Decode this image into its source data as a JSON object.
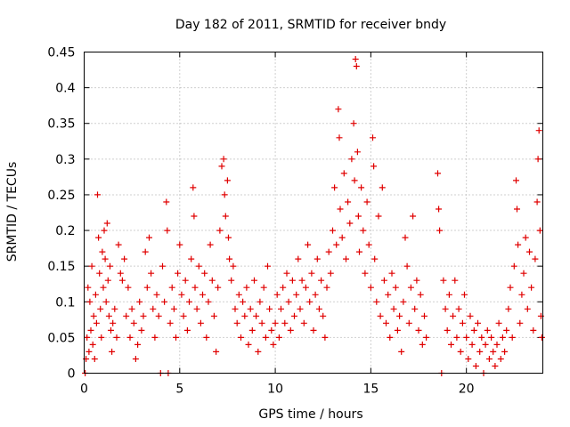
{
  "chart_data": {
    "type": "scatter",
    "title": "Day 182 of 2011, SRMTID for receiver bndy",
    "xlabel": "GPS time / hours",
    "ylabel": "SRMTID / TECUs",
    "xlim": [
      0,
      24
    ],
    "ylim": [
      0,
      0.45
    ],
    "xticks": [
      0,
      5,
      10,
      15,
      20
    ],
    "yticks": [
      0,
      0.05,
      0.1,
      0.15,
      0.2,
      0.25,
      0.3,
      0.35,
      0.4,
      0.45
    ],
    "xtick_labels": [
      "0",
      "5",
      "10",
      "15",
      "20"
    ],
    "ytick_labels": [
      "0",
      "0.05",
      "0.1",
      "0.15",
      "0.2",
      "0.25",
      "0.3",
      "0.35",
      "0.4",
      "0.45"
    ],
    "grid": true,
    "marker": "plus",
    "marker_color": "#e00000",
    "series": [
      {
        "name": "SRMTID",
        "points": [
          [
            0.05,
            0.0
          ],
          [
            0.1,
            0.02
          ],
          [
            0.15,
            0.05
          ],
          [
            0.2,
            0.12
          ],
          [
            0.25,
            0.03
          ],
          [
            0.3,
            0.1
          ],
          [
            0.35,
            0.06
          ],
          [
            0.4,
            0.15
          ],
          [
            0.45,
            0.04
          ],
          [
            0.5,
            0.08
          ],
          [
            0.55,
            0.02
          ],
          [
            0.6,
            0.11
          ],
          [
            0.65,
            0.07
          ],
          [
            0.7,
            0.25
          ],
          [
            0.75,
            0.19
          ],
          [
            0.8,
            0.14
          ],
          [
            0.85,
            0.09
          ],
          [
            0.9,
            0.05
          ],
          [
            0.95,
            0.17
          ],
          [
            1.0,
            0.12
          ],
          [
            1.05,
            0.2
          ],
          [
            1.1,
            0.16
          ],
          [
            1.15,
            0.1
          ],
          [
            1.2,
            0.21
          ],
          [
            1.25,
            0.13
          ],
          [
            1.3,
            0.08
          ],
          [
            1.35,
            0.15
          ],
          [
            1.4,
            0.06
          ],
          [
            1.45,
            0.03
          ],
          [
            1.5,
            0.07
          ],
          [
            1.6,
            0.09
          ],
          [
            1.7,
            0.05
          ],
          [
            1.8,
            0.18
          ],
          [
            1.9,
            0.14
          ],
          [
            2.0,
            0.13
          ],
          [
            2.1,
            0.16
          ],
          [
            2.2,
            0.08
          ],
          [
            2.3,
            0.12
          ],
          [
            2.4,
            0.05
          ],
          [
            2.5,
            0.09
          ],
          [
            2.6,
            0.07
          ],
          [
            2.7,
            0.02
          ],
          [
            2.8,
            0.04
          ],
          [
            2.9,
            0.1
          ],
          [
            3.0,
            0.06
          ],
          [
            3.1,
            0.08
          ],
          [
            3.2,
            0.17
          ],
          [
            3.3,
            0.12
          ],
          [
            3.4,
            0.19
          ],
          [
            3.5,
            0.14
          ],
          [
            3.6,
            0.09
          ],
          [
            3.7,
            0.05
          ],
          [
            3.8,
            0.11
          ],
          [
            3.9,
            0.08
          ],
          [
            4.0,
            0.0
          ],
          [
            4.1,
            0.15
          ],
          [
            4.2,
            0.1
          ],
          [
            4.3,
            0.24
          ],
          [
            4.35,
            0.2
          ],
          [
            4.4,
            0.0
          ],
          [
            4.5,
            0.07
          ],
          [
            4.6,
            0.12
          ],
          [
            4.7,
            0.09
          ],
          [
            4.8,
            0.05
          ],
          [
            4.9,
            0.14
          ],
          [
            5.0,
            0.18
          ],
          [
            5.1,
            0.11
          ],
          [
            5.2,
            0.08
          ],
          [
            5.3,
            0.13
          ],
          [
            5.4,
            0.06
          ],
          [
            5.5,
            0.1
          ],
          [
            5.6,
            0.16
          ],
          [
            5.7,
            0.26
          ],
          [
            5.75,
            0.22
          ],
          [
            5.8,
            0.12
          ],
          [
            5.9,
            0.09
          ],
          [
            6.0,
            0.15
          ],
          [
            6.1,
            0.07
          ],
          [
            6.2,
            0.11
          ],
          [
            6.3,
            0.14
          ],
          [
            6.4,
            0.05
          ],
          [
            6.5,
            0.1
          ],
          [
            6.6,
            0.18
          ],
          [
            6.7,
            0.13
          ],
          [
            6.8,
            0.08
          ],
          [
            6.9,
            0.03
          ],
          [
            7.0,
            0.12
          ],
          [
            7.1,
            0.2
          ],
          [
            7.2,
            0.29
          ],
          [
            7.3,
            0.3
          ],
          [
            7.35,
            0.25
          ],
          [
            7.4,
            0.22
          ],
          [
            7.5,
            0.27
          ],
          [
            7.55,
            0.19
          ],
          [
            7.6,
            0.16
          ],
          [
            7.7,
            0.13
          ],
          [
            7.8,
            0.15
          ],
          [
            7.9,
            0.09
          ],
          [
            8.0,
            0.07
          ],
          [
            8.1,
            0.11
          ],
          [
            8.2,
            0.05
          ],
          [
            8.3,
            0.1
          ],
          [
            8.4,
            0.08
          ],
          [
            8.5,
            0.12
          ],
          [
            8.6,
            0.04
          ],
          [
            8.7,
            0.09
          ],
          [
            8.8,
            0.06
          ],
          [
            8.9,
            0.13
          ],
          [
            9.0,
            0.08
          ],
          [
            9.1,
            0.03
          ],
          [
            9.2,
            0.1
          ],
          [
            9.3,
            0.07
          ],
          [
            9.4,
            0.12
          ],
          [
            9.5,
            0.05
          ],
          [
            9.6,
            0.15
          ],
          [
            9.7,
            0.09
          ],
          [
            9.8,
            0.06
          ],
          [
            9.9,
            0.04
          ],
          [
            10.0,
            0.07
          ],
          [
            10.1,
            0.11
          ],
          [
            10.2,
            0.05
          ],
          [
            10.3,
            0.09
          ],
          [
            10.4,
            0.12
          ],
          [
            10.5,
            0.07
          ],
          [
            10.6,
            0.14
          ],
          [
            10.7,
            0.1
          ],
          [
            10.8,
            0.06
          ],
          [
            10.9,
            0.13
          ],
          [
            11.0,
            0.08
          ],
          [
            11.1,
            0.11
          ],
          [
            11.2,
            0.16
          ],
          [
            11.3,
            0.09
          ],
          [
            11.4,
            0.13
          ],
          [
            11.5,
            0.07
          ],
          [
            11.6,
            0.12
          ],
          [
            11.7,
            0.18
          ],
          [
            11.8,
            0.1
          ],
          [
            11.9,
            0.14
          ],
          [
            12.0,
            0.06
          ],
          [
            12.1,
            0.11
          ],
          [
            12.2,
            0.16
          ],
          [
            12.3,
            0.09
          ],
          [
            12.4,
            0.13
          ],
          [
            12.5,
            0.08
          ],
          [
            12.6,
            0.05
          ],
          [
            12.7,
            0.12
          ],
          [
            12.8,
            0.17
          ],
          [
            12.9,
            0.14
          ],
          [
            13.0,
            0.2
          ],
          [
            13.1,
            0.26
          ],
          [
            13.2,
            0.18
          ],
          [
            13.3,
            0.37
          ],
          [
            13.35,
            0.33
          ],
          [
            13.4,
            0.23
          ],
          [
            13.5,
            0.19
          ],
          [
            13.6,
            0.28
          ],
          [
            13.7,
            0.16
          ],
          [
            13.8,
            0.24
          ],
          [
            13.9,
            0.21
          ],
          [
            14.0,
            0.3
          ],
          [
            14.1,
            0.35
          ],
          [
            14.15,
            0.27
          ],
          [
            14.2,
            0.44
          ],
          [
            14.25,
            0.43
          ],
          [
            14.3,
            0.31
          ],
          [
            14.35,
            0.22
          ],
          [
            14.4,
            0.17
          ],
          [
            14.5,
            0.26
          ],
          [
            14.6,
            0.2
          ],
          [
            14.7,
            0.14
          ],
          [
            14.8,
            0.24
          ],
          [
            14.9,
            0.18
          ],
          [
            15.0,
            0.12
          ],
          [
            15.1,
            0.33
          ],
          [
            15.15,
            0.29
          ],
          [
            15.2,
            0.16
          ],
          [
            15.3,
            0.1
          ],
          [
            15.4,
            0.22
          ],
          [
            15.5,
            0.08
          ],
          [
            15.6,
            0.26
          ],
          [
            15.7,
            0.13
          ],
          [
            15.8,
            0.07
          ],
          [
            15.9,
            0.11
          ],
          [
            16.0,
            0.05
          ],
          [
            16.1,
            0.14
          ],
          [
            16.2,
            0.09
          ],
          [
            16.3,
            0.12
          ],
          [
            16.4,
            0.06
          ],
          [
            16.5,
            0.08
          ],
          [
            16.6,
            0.03
          ],
          [
            16.7,
            0.1
          ],
          [
            16.8,
            0.19
          ],
          [
            16.9,
            0.15
          ],
          [
            17.0,
            0.07
          ],
          [
            17.1,
            0.12
          ],
          [
            17.2,
            0.22
          ],
          [
            17.3,
            0.09
          ],
          [
            17.4,
            0.13
          ],
          [
            17.5,
            0.06
          ],
          [
            17.6,
            0.11
          ],
          [
            17.7,
            0.04
          ],
          [
            17.8,
            0.08
          ],
          [
            17.9,
            0.05
          ],
          [
            18.5,
            0.28
          ],
          [
            18.55,
            0.23
          ],
          [
            18.6,
            0.2
          ],
          [
            18.7,
            0.0
          ],
          [
            18.8,
            0.13
          ],
          [
            18.9,
            0.09
          ],
          [
            19.0,
            0.06
          ],
          [
            19.1,
            0.11
          ],
          [
            19.2,
            0.04
          ],
          [
            19.3,
            0.08
          ],
          [
            19.4,
            0.13
          ],
          [
            19.5,
            0.05
          ],
          [
            19.6,
            0.09
          ],
          [
            19.7,
            0.03
          ],
          [
            19.8,
            0.07
          ],
          [
            19.9,
            0.11
          ],
          [
            20.0,
            0.05
          ],
          [
            20.1,
            0.02
          ],
          [
            20.2,
            0.08
          ],
          [
            20.3,
            0.04
          ],
          [
            20.4,
            0.06
          ],
          [
            20.5,
            0.01
          ],
          [
            20.6,
            0.07
          ],
          [
            20.7,
            0.03
          ],
          [
            20.8,
            0.05
          ],
          [
            20.9,
            0.0
          ],
          [
            21.0,
            0.04
          ],
          [
            21.1,
            0.06
          ],
          [
            21.2,
            0.02
          ],
          [
            21.3,
            0.05
          ],
          [
            21.4,
            0.03
          ],
          [
            21.5,
            0.01
          ],
          [
            21.6,
            0.04
          ],
          [
            21.7,
            0.07
          ],
          [
            21.8,
            0.02
          ],
          [
            21.9,
            0.05
          ],
          [
            22.0,
            0.03
          ],
          [
            22.1,
            0.06
          ],
          [
            22.2,
            0.09
          ],
          [
            22.3,
            0.12
          ],
          [
            22.4,
            0.05
          ],
          [
            22.5,
            0.15
          ],
          [
            22.6,
            0.27
          ],
          [
            22.65,
            0.23
          ],
          [
            22.7,
            0.18
          ],
          [
            22.8,
            0.07
          ],
          [
            22.9,
            0.11
          ],
          [
            23.0,
            0.14
          ],
          [
            23.1,
            0.19
          ],
          [
            23.2,
            0.09
          ],
          [
            23.3,
            0.17
          ],
          [
            23.4,
            0.12
          ],
          [
            23.5,
            0.06
          ],
          [
            23.6,
            0.16
          ],
          [
            23.7,
            0.24
          ],
          [
            23.75,
            0.3
          ],
          [
            23.8,
            0.34
          ],
          [
            23.85,
            0.2
          ],
          [
            23.9,
            0.08
          ],
          [
            23.95,
            0.05
          ]
        ]
      }
    ]
  }
}
